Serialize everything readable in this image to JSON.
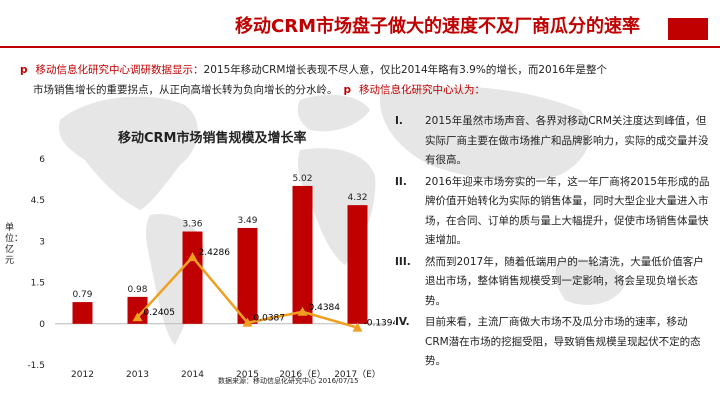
{
  "header": {
    "title": "移动CRM市场盘子做大的速度不及厂商瓜分的速率"
  },
  "intro": {
    "bullet": "p",
    "line1_red": "移动信息化研究中心调研数据显示：",
    "line1_rest": "2015年移动CRM增长表现不尽人意，仅比2014年略有3.9%的增长，而2016年是整个",
    "line2": "市场销售增长的重要拐点，从正向高增长转为负向增长的分水岭。",
    "bullet2": "p",
    "line2_red": "移动信息化研究中心认为："
  },
  "chart_data": {
    "type": "bar",
    "title": "移动CRM市场销售规模及增长率",
    "ylabel": "单位：亿元",
    "categories": [
      "2012",
      "2013",
      "2014",
      "2015",
      "2016（E）",
      "2017（E）"
    ],
    "series": [
      {
        "values": [
          0.79,
          0.98,
          3.36,
          3.49,
          5.02,
          4.32
        ]
      },
      {
        "values": [
          null,
          0.2405,
          2.4286,
          0.0387,
          0.4384,
          -0.1394
        ]
      }
    ],
    "bar_labels": [
      "0.79",
      "0.98",
      "3.36",
      "3.49",
      "5.02",
      "4.32"
    ],
    "line_labels": [
      "",
      "0.2405",
      "2.4286",
      "0.0387",
      "0.4384",
      "-0.1394"
    ],
    "ylim": [
      -1.5,
      6
    ],
    "yticks": [
      "6",
      "4.5",
      "3",
      "1.5",
      "0",
      "-1.5"
    ],
    "bar_color": "#c00000",
    "line_color": "#f0a020",
    "source": "数据来源：移动信息化研究中心 2016/07/15"
  },
  "opinions": [
    {
      "num": "I.",
      "text": "2015年虽然市场声音、各界对移动CRM关注度达到峰值，但实际厂商主要在做市场推广和品牌影响力，实际的成交量并没有很高。"
    },
    {
      "num": "II.",
      "text": "2016年迎来市场夯实的一年，这一年厂商将2015年形成的品牌价值开始转化为实际的销售体量，同时大型企业大量进入市场，在合同、订单的质与量上大幅提升，促使市场销售体量快速增加。"
    },
    {
      "num": "III.",
      "text": "然而到2017年，随着低端用户的一轮清洗，大量低价值客户退出市场，整体销售规模受到一定影响，将会呈现负增长态势。"
    },
    {
      "num": "IV.",
      "text": "目前来看，主流厂商做大市场不及瓜分市场的速率，移动CRM潜在市场的挖掘受阻，导致销售规模呈现起伏不定的态势。"
    }
  ]
}
